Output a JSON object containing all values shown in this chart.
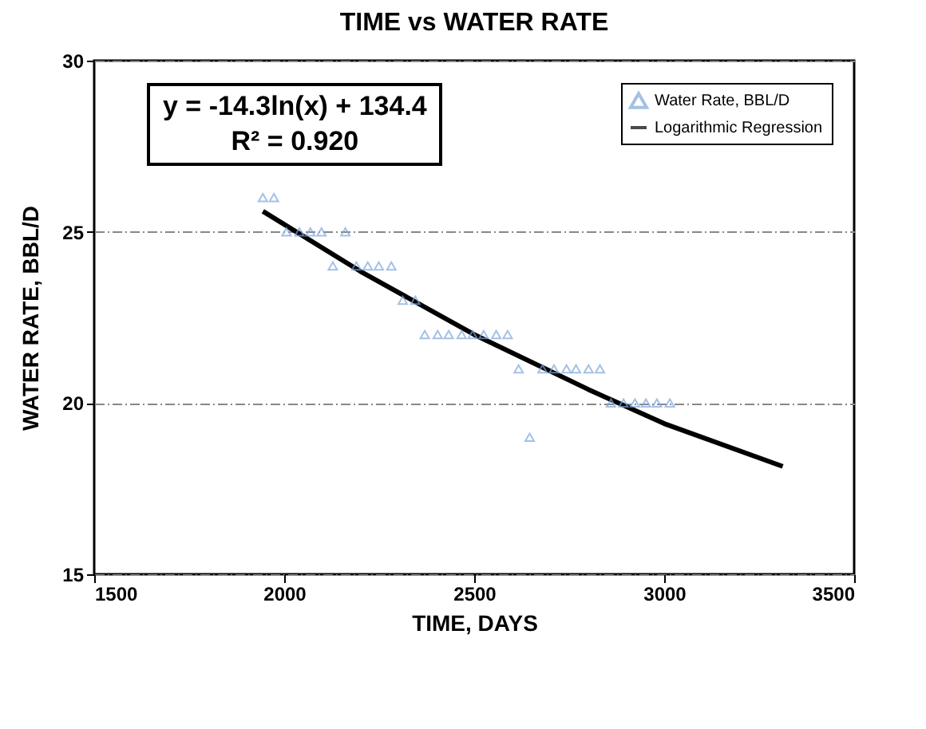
{
  "chart_data": {
    "type": "scatter",
    "title": "TIME vs WATER RATE",
    "xlabel": "TIME, DAYS",
    "ylabel": "WATER RATE, BBL/D",
    "annotations": [
      "y = -14.3ln(x) + 134.4",
      "R² = 0.920"
    ],
    "series": [
      {
        "name": "Water Rate, BBL/D",
        "color": "#7ea6dc",
        "marker": "triangle",
        "x": [
          1944,
          1973,
          2006,
          2040,
          2069,
          2098,
          2161,
          2128,
          2190,
          2220,
          2249,
          2282,
          2312,
          2345,
          2370,
          2404,
          2433,
          2467,
          2496,
          2525,
          2558,
          2588,
          2617,
          2646,
          2680,
          2710,
          2743,
          2768,
          2801,
          2831,
          2860,
          2893,
          2923,
          2952,
          2981,
          3015
        ],
        "values": [
          26,
          26,
          25,
          25,
          25,
          25,
          25,
          24,
          24,
          24,
          24,
          24,
          23,
          23,
          22,
          22,
          22,
          22,
          22,
          22,
          22,
          22,
          21,
          19,
          21,
          21,
          21,
          21,
          21,
          21,
          20,
          20,
          20,
          20,
          20,
          20
        ]
      },
      {
        "name": "Logarithmic Regression",
        "type": "line",
        "color": "#000000",
        "marker": "none",
        "x": [
          1944,
          2200,
          2500,
          2800,
          3000,
          3312
        ],
        "values": [
          25.6,
          23.85,
          22.0,
          20.4,
          19.4,
          18.15
        ]
      }
    ],
    "xlim": [
      1500,
      3500
    ],
    "xticks": [
      1500,
      2000,
      2500,
      3000,
      3500
    ],
    "ylim": [
      15,
      30
    ],
    "yticks": [
      15,
      20,
      25,
      30
    ],
    "grid": "y",
    "legend": "top right"
  }
}
